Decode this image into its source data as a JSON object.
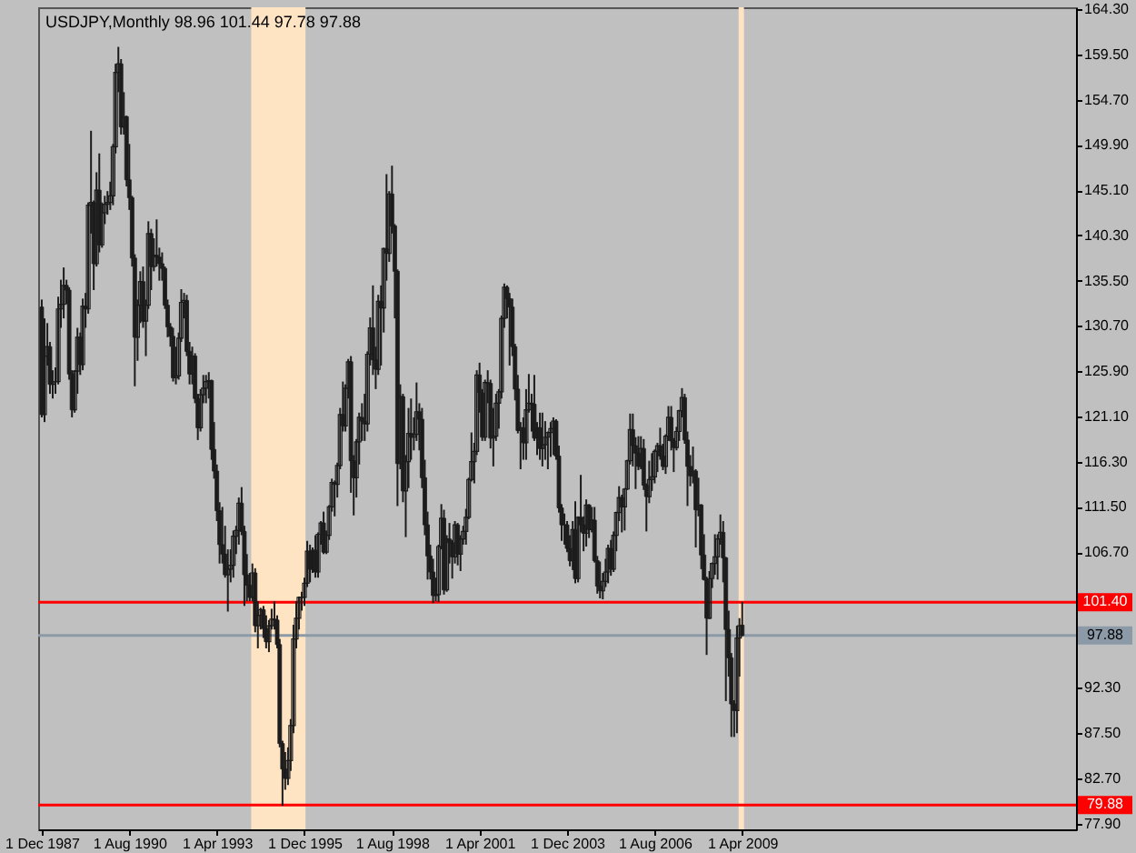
{
  "chart_data": {
    "type": "candlestick",
    "title": "USDJPY,Monthly 98.96 101.44 97.78 97.88",
    "color": "#1c1c1c",
    "grid": false,
    "x": [
      "1987-12",
      "1988-01",
      "1988-02",
      "1988-03",
      "1988-04",
      "1988-05",
      "1988-06",
      "1988-07",
      "1988-08",
      "1988-09",
      "1988-10",
      "1988-11",
      "1988-12",
      "1989-01",
      "1989-02",
      "1989-03",
      "1989-04",
      "1989-05",
      "1989-06",
      "1989-07",
      "1989-08",
      "1989-09",
      "1989-10",
      "1989-11",
      "1989-12",
      "1990-01",
      "1990-02",
      "1990-03",
      "1990-04",
      "1990-05",
      "1990-06",
      "1990-07",
      "1990-08",
      "1990-09",
      "1990-10",
      "1990-11",
      "1990-12",
      "1991-01",
      "1991-02",
      "1991-03",
      "1991-04",
      "1991-05",
      "1991-06",
      "1991-07",
      "1991-08",
      "1991-09",
      "1991-10",
      "1991-11",
      "1991-12",
      "1992-01",
      "1992-02",
      "1992-03",
      "1992-04",
      "1992-05",
      "1992-06",
      "1992-07",
      "1992-08",
      "1992-09",
      "1992-10",
      "1992-11",
      "1992-12",
      "1993-01",
      "1993-02",
      "1993-03",
      "1993-04",
      "1993-05",
      "1993-06",
      "1993-07",
      "1993-08",
      "1993-09",
      "1993-10",
      "1993-11",
      "1993-12",
      "1994-01",
      "1994-02",
      "1994-03",
      "1994-04",
      "1994-05",
      "1994-06",
      "1994-07",
      "1994-08",
      "1994-09",
      "1994-10",
      "1994-11",
      "1994-12",
      "1995-01",
      "1995-02",
      "1995-03",
      "1995-04",
      "1995-05",
      "1995-06",
      "1995-07",
      "1995-08",
      "1995-09",
      "1995-10",
      "1995-11",
      "1995-12",
      "1996-01",
      "1996-02",
      "1996-03",
      "1996-04",
      "1996-05",
      "1996-06",
      "1996-07",
      "1996-08",
      "1996-09",
      "1996-10",
      "1996-11",
      "1996-12",
      "1997-01",
      "1997-02",
      "1997-03",
      "1997-04",
      "1997-05",
      "1997-06",
      "1997-07",
      "1997-08",
      "1997-09",
      "1997-10",
      "1997-11",
      "1997-12",
      "1998-01",
      "1998-02",
      "1998-03",
      "1998-04",
      "1998-05",
      "1998-06",
      "1998-07",
      "1998-08",
      "1998-09",
      "1998-10",
      "1998-11",
      "1998-12",
      "1999-01",
      "1999-02",
      "1999-03",
      "1999-04",
      "1999-05",
      "1999-06",
      "1999-07",
      "1999-08",
      "1999-09",
      "1999-10",
      "1999-11",
      "1999-12",
      "2000-01",
      "2000-02",
      "2000-03",
      "2000-04",
      "2000-05",
      "2000-06",
      "2000-07",
      "2000-08",
      "2000-09",
      "2000-10",
      "2000-11",
      "2000-12",
      "2001-01",
      "2001-02",
      "2001-03",
      "2001-04",
      "2001-05",
      "2001-06",
      "2001-07",
      "2001-08",
      "2001-09",
      "2001-10",
      "2001-11",
      "2001-12",
      "2002-01",
      "2002-02",
      "2002-03",
      "2002-04",
      "2002-05",
      "2002-06",
      "2002-07",
      "2002-08",
      "2002-09",
      "2002-10",
      "2002-11",
      "2002-12",
      "2003-01",
      "2003-02",
      "2003-03",
      "2003-04",
      "2003-05",
      "2003-06",
      "2003-07",
      "2003-08",
      "2003-09",
      "2003-10",
      "2003-11",
      "2003-12",
      "2004-01",
      "2004-02",
      "2004-03",
      "2004-04",
      "2004-05",
      "2004-06",
      "2004-07",
      "2004-08",
      "2004-09",
      "2004-10",
      "2004-11",
      "2004-12",
      "2005-01",
      "2005-02",
      "2005-03",
      "2005-04",
      "2005-05",
      "2005-06",
      "2005-07",
      "2005-08",
      "2005-09",
      "2005-10",
      "2005-11",
      "2005-12",
      "2006-01",
      "2006-02",
      "2006-03",
      "2006-04",
      "2006-05",
      "2006-06",
      "2006-07",
      "2006-08",
      "2006-09",
      "2006-10",
      "2006-11",
      "2006-12",
      "2007-01",
      "2007-02",
      "2007-03",
      "2007-04",
      "2007-05",
      "2007-06",
      "2007-07",
      "2007-08",
      "2007-09",
      "2007-10",
      "2007-11",
      "2007-12",
      "2008-01",
      "2008-02",
      "2008-03",
      "2008-04",
      "2008-05",
      "2008-06",
      "2008-07",
      "2008-08",
      "2008-09",
      "2008-10",
      "2008-11",
      "2008-12",
      "2009-01",
      "2009-02",
      "2009-03",
      "2009-04"
    ],
    "ohlc": [
      [
        132.7,
        133.5,
        121.0,
        121.3
      ],
      [
        121.3,
        131.5,
        120.5,
        127.5
      ],
      [
        127.5,
        131.0,
        126.5,
        128.5
      ],
      [
        128.5,
        129.0,
        123.5,
        124.5
      ],
      [
        124.5,
        126.0,
        123.0,
        124.8
      ],
      [
        124.8,
        126.3,
        123.5,
        124.8
      ],
      [
        124.8,
        133.8,
        124.5,
        132.5
      ],
      [
        132.5,
        135.6,
        130.5,
        133.0
      ],
      [
        133.0,
        136.9,
        131.5,
        135.0
      ],
      [
        135.0,
        135.6,
        133.0,
        134.5
      ],
      [
        134.5,
        134.8,
        125.0,
        125.6
      ],
      [
        125.6,
        126.0,
        121.0,
        121.8
      ],
      [
        121.8,
        126.0,
        121.5,
        125.9
      ],
      [
        125.9,
        130.5,
        123.5,
        129.5
      ],
      [
        129.5,
        130.0,
        125.5,
        126.6
      ],
      [
        126.6,
        133.6,
        126.0,
        132.8
      ],
      [
        132.8,
        134.2,
        130.5,
        132.5
      ],
      [
        132.5,
        143.8,
        132.0,
        143.5
      ],
      [
        143.5,
        151.4,
        140.5,
        143.8
      ],
      [
        143.8,
        144.0,
        134.5,
        137.3
      ],
      [
        137.3,
        147.0,
        137.0,
        145.1
      ],
      [
        145.1,
        149.0,
        138.5,
        139.3
      ],
      [
        139.3,
        143.8,
        139.0,
        142.7
      ],
      [
        142.7,
        144.5,
        141.5,
        143.6
      ],
      [
        143.6,
        145.0,
        142.5,
        143.8
      ],
      [
        143.8,
        146.0,
        143.0,
        144.5
      ],
      [
        144.5,
        150.0,
        143.5,
        149.7
      ],
      [
        149.7,
        158.5,
        149.0,
        157.6
      ],
      [
        157.6,
        160.3,
        155.5,
        158.5
      ],
      [
        158.5,
        159.0,
        151.0,
        151.8
      ],
      [
        151.8,
        155.5,
        151.0,
        152.9
      ],
      [
        152.9,
        153.0,
        145.5,
        146.2
      ],
      [
        146.2,
        150.0,
        143.0,
        144.3
      ],
      [
        144.3,
        144.5,
        137.0,
        137.9
      ],
      [
        137.9,
        138.3,
        124.3,
        129.5
      ],
      [
        129.5,
        133.5,
        127.0,
        132.9
      ],
      [
        132.9,
        136.5,
        131.0,
        135.4
      ],
      [
        135.4,
        137.0,
        130.5,
        131.2
      ],
      [
        131.2,
        133.5,
        127.5,
        132.9
      ],
      [
        132.9,
        141.8,
        132.5,
        140.5
      ],
      [
        140.5,
        141.0,
        134.5,
        137.0
      ],
      [
        137.0,
        140.0,
        136.5,
        138.2
      ],
      [
        138.2,
        142.0,
        137.0,
        138.0
      ],
      [
        138.0,
        139.0,
        135.5,
        137.3
      ],
      [
        137.3,
        138.5,
        135.5,
        136.8
      ],
      [
        136.8,
        137.0,
        132.5,
        132.9
      ],
      [
        132.9,
        133.5,
        129.5,
        130.6
      ],
      [
        130.6,
        131.0,
        128.5,
        129.6
      ],
      [
        129.6,
        130.5,
        124.8,
        125.2
      ],
      [
        125.2,
        128.5,
        124.5,
        125.4
      ],
      [
        125.4,
        130.0,
        125.0,
        129.4
      ],
      [
        129.4,
        134.6,
        129.0,
        133.2
      ],
      [
        133.2,
        134.2,
        131.5,
        133.4
      ],
      [
        133.4,
        134.0,
        127.5,
        128.0
      ],
      [
        128.0,
        129.0,
        124.5,
        125.6
      ],
      [
        125.6,
        128.5,
        124.5,
        127.5
      ],
      [
        127.5,
        127.8,
        122.5,
        123.0
      ],
      [
        123.0,
        123.5,
        118.6,
        119.9
      ],
      [
        119.9,
        124.0,
        119.5,
        123.4
      ],
      [
        123.4,
        125.5,
        122.5,
        124.1
      ],
      [
        124.1,
        125.5,
        122.5,
        124.8
      ],
      [
        124.8,
        125.8,
        123.0,
        124.9
      ],
      [
        124.9,
        125.0,
        116.5,
        117.6
      ],
      [
        117.6,
        120.5,
        114.5,
        115.3
      ],
      [
        115.3,
        116.0,
        110.0,
        111.1
      ],
      [
        111.1,
        112.0,
        105.5,
        107.5
      ],
      [
        107.5,
        111.5,
        105.5,
        106.5
      ],
      [
        106.5,
        109.5,
        104.0,
        104.3
      ],
      [
        104.3,
        107.0,
        100.4,
        104.9
      ],
      [
        104.9,
        107.0,
        103.5,
        105.3
      ],
      [
        105.3,
        109.0,
        104.0,
        108.4
      ],
      [
        108.4,
        109.5,
        106.5,
        109.0
      ],
      [
        109.0,
        112.5,
        107.5,
        111.9
      ],
      [
        111.9,
        113.6,
        108.5,
        108.9
      ],
      [
        108.9,
        109.5,
        101.0,
        104.3
      ],
      [
        104.3,
        106.5,
        101.5,
        103.2
      ],
      [
        103.2,
        104.5,
        101.5,
        101.9
      ],
      [
        101.9,
        105.5,
        101.5,
        104.5
      ],
      [
        104.5,
        105.0,
        98.2,
        98.9
      ],
      [
        98.9,
        101.5,
        96.5,
        100.0
      ],
      [
        100.0,
        100.8,
        98.5,
        100.6
      ],
      [
        100.6,
        101.0,
        97.6,
        98.6
      ],
      [
        98.6,
        100.0,
        96.5,
        97.2
      ],
      [
        97.2,
        99.5,
        96.1,
        98.9
      ],
      [
        98.9,
        100.7,
        98.5,
        99.6
      ],
      [
        99.6,
        101.5,
        98.5,
        99.5
      ],
      [
        99.5,
        100.0,
        96.5,
        96.9
      ],
      [
        96.9,
        97.5,
        86.0,
        86.4
      ],
      [
        86.4,
        86.7,
        79.8,
        83.7
      ],
      [
        83.7,
        85.5,
        81.5,
        82.7
      ],
      [
        82.7,
        86.0,
        82.0,
        84.6
      ],
      [
        84.6,
        89.0,
        83.5,
        88.3
      ],
      [
        88.3,
        99.0,
        87.5,
        97.5
      ],
      [
        97.5,
        101.5,
        96.5,
        99.7
      ],
      [
        99.7,
        102.0,
        98.5,
        101.9
      ],
      [
        101.9,
        102.5,
        100.5,
        101.9
      ],
      [
        101.9,
        104.0,
        101.0,
        103.4
      ],
      [
        103.4,
        107.9,
        103.0,
        106.8
      ],
      [
        106.8,
        107.5,
        103.5,
        104.9
      ],
      [
        104.9,
        107.2,
        104.5,
        106.9
      ],
      [
        106.9,
        108.5,
        104.0,
        104.6
      ],
      [
        104.6,
        108.8,
        104.0,
        108.6
      ],
      [
        108.6,
        110.0,
        107.5,
        109.8
      ],
      [
        109.8,
        111.0,
        106.5,
        106.7
      ],
      [
        106.7,
        109.0,
        106.5,
        108.5
      ],
      [
        108.5,
        111.7,
        108.0,
        111.5
      ],
      [
        111.5,
        114.5,
        111.0,
        114.1
      ],
      [
        114.1,
        114.3,
        110.5,
        113.9
      ],
      [
        113.9,
        116.2,
        112.5,
        115.9
      ],
      [
        115.9,
        122.0,
        115.5,
        121.3
      ],
      [
        121.3,
        124.8,
        119.5,
        120.1
      ],
      [
        120.1,
        124.5,
        119.5,
        124.1
      ],
      [
        124.1,
        127.2,
        123.0,
        126.9
      ],
      [
        126.9,
        127.5,
        113.0,
        116.4
      ],
      [
        116.4,
        117.0,
        110.6,
        114.6
      ],
      [
        114.6,
        118.7,
        112.5,
        118.4
      ],
      [
        118.4,
        121.5,
        116.0,
        121.0
      ],
      [
        121.0,
        122.5,
        118.5,
        120.6
      ],
      [
        120.6,
        123.5,
        118.5,
        120.3
      ],
      [
        120.3,
        128.0,
        119.5,
        127.7
      ],
      [
        127.7,
        131.6,
        126.5,
        130.5
      ],
      [
        130.5,
        135.0,
        125.5,
        127.1
      ],
      [
        127.1,
        128.5,
        124.0,
        126.1
      ],
      [
        126.1,
        134.0,
        125.5,
        133.3
      ],
      [
        133.3,
        135.0,
        126.5,
        132.6
      ],
      [
        132.6,
        139.0,
        130.0,
        138.9
      ],
      [
        138.9,
        146.8,
        135.5,
        138.4
      ],
      [
        138.4,
        145.0,
        137.5,
        144.7
      ],
      [
        144.7,
        147.7,
        140.5,
        141.3
      ],
      [
        141.3,
        141.5,
        131.5,
        136.5
      ],
      [
        136.5,
        136.7,
        111.6,
        116.1
      ],
      [
        116.1,
        124.5,
        115.5,
        123.2
      ],
      [
        123.2,
        123.5,
        112.0,
        113.2
      ],
      [
        113.2,
        117.0,
        108.3,
        116.3
      ],
      [
        116.3,
        122.0,
        113.5,
        119.3
      ],
      [
        119.3,
        123.0,
        116.5,
        118.9
      ],
      [
        118.9,
        121.0,
        117.5,
        119.2
      ],
      [
        119.2,
        124.7,
        118.5,
        121.6
      ],
      [
        121.6,
        122.5,
        117.5,
        120.8
      ],
      [
        120.8,
        122.0,
        113.5,
        114.6
      ],
      [
        114.6,
        116.5,
        108.5,
        109.6
      ],
      [
        109.6,
        111.0,
        103.8,
        106.3
      ],
      [
        106.3,
        107.5,
        103.8,
        104.6
      ],
      [
        104.6,
        106.0,
        101.3,
        102.1
      ],
      [
        102.1,
        104.0,
        101.5,
        102.2
      ],
      [
        102.2,
        107.5,
        101.4,
        107.3
      ],
      [
        107.3,
        111.8,
        107.0,
        110.3
      ],
      [
        110.3,
        111.2,
        102.2,
        102.7
      ],
      [
        102.7,
        108.5,
        102.5,
        108.1
      ],
      [
        108.1,
        109.8,
        105.5,
        107.7
      ],
      [
        107.7,
        108.0,
        103.9,
        106.2
      ],
      [
        106.2,
        110.0,
        105.5,
        109.6
      ],
      [
        109.6,
        109.8,
        105.3,
        106.5
      ],
      [
        106.5,
        108.5,
        104.7,
        108.1
      ],
      [
        108.1,
        109.5,
        107.5,
        108.9
      ],
      [
        108.9,
        111.3,
        107.5,
        110.4
      ],
      [
        110.4,
        114.6,
        110.2,
        114.4
      ],
      [
        114.4,
        119.4,
        114.2,
        116.3
      ],
      [
        116.3,
        118.3,
        114.0,
        117.4
      ],
      [
        117.4,
        126.0,
        117.0,
        125.5
      ],
      [
        125.5,
        126.8,
        121.5,
        123.6
      ],
      [
        123.6,
        124.0,
        118.5,
        118.9
      ],
      [
        118.9,
        125.0,
        118.5,
        124.7
      ],
      [
        124.7,
        126.0,
        122.5,
        124.6
      ],
      [
        124.6,
        125.0,
        117.7,
        118.8
      ],
      [
        118.8,
        122.0,
        115.8,
        119.0
      ],
      [
        119.0,
        123.5,
        118.5,
        122.5
      ],
      [
        122.5,
        124.0,
        119.8,
        123.7
      ],
      [
        123.7,
        131.8,
        123.0,
        131.5
      ],
      [
        131.5,
        135.2,
        130.5,
        134.8
      ],
      [
        134.8,
        135.0,
        131.5,
        133.6
      ],
      [
        133.6,
        134.2,
        126.5,
        132.7
      ],
      [
        132.7,
        133.6,
        127.5,
        128.5
      ],
      [
        128.5,
        128.8,
        122.8,
        124.0
      ],
      [
        124.0,
        125.5,
        119.3,
        119.6
      ],
      [
        119.6,
        120.5,
        115.5,
        119.9
      ],
      [
        119.9,
        121.0,
        116.5,
        118.3
      ],
      [
        118.3,
        124.0,
        116.5,
        121.8
      ],
      [
        121.8,
        125.6,
        121.5,
        122.5
      ],
      [
        122.5,
        123.5,
        119.5,
        122.4
      ],
      [
        122.4,
        125.5,
        118.5,
        118.8
      ],
      [
        118.8,
        120.5,
        117.0,
        119.9
      ],
      [
        119.9,
        121.5,
        116.5,
        117.7
      ],
      [
        117.7,
        121.5,
        115.8,
        118.1
      ],
      [
        118.1,
        120.6,
        116.5,
        118.9
      ],
      [
        118.9,
        119.5,
        115.5,
        119.4
      ],
      [
        119.4,
        120.5,
        116.8,
        119.8
      ],
      [
        119.8,
        121.0,
        117.0,
        120.6
      ],
      [
        120.6,
        120.8,
        116.5,
        116.9
      ],
      [
        116.9,
        118.0,
        110.9,
        111.4
      ],
      [
        111.4,
        111.8,
        107.9,
        109.6
      ],
      [
        109.6,
        110.8,
        107.5,
        109.6
      ],
      [
        109.6,
        110.0,
        106.7,
        107.1
      ],
      [
        107.1,
        108.5,
        105.2,
        105.8
      ],
      [
        105.8,
        110.0,
        104.8,
        109.1
      ],
      [
        109.1,
        112.1,
        103.4,
        103.9
      ],
      [
        103.9,
        110.5,
        103.5,
        110.4
      ],
      [
        110.4,
        114.9,
        108.8,
        109.6
      ],
      [
        109.6,
        110.5,
        106.8,
        108.7
      ],
      [
        108.7,
        112.3,
        107.3,
        111.7
      ],
      [
        111.7,
        111.8,
        108.2,
        109.1
      ],
      [
        109.1,
        111.5,
        108.8,
        110.1
      ],
      [
        110.1,
        111.5,
        105.6,
        105.8
      ],
      [
        105.8,
        106.3,
        102.3,
        103.1
      ],
      [
        103.1,
        105.7,
        101.8,
        102.6
      ],
      [
        102.6,
        104.5,
        101.7,
        103.6
      ],
      [
        103.6,
        106.0,
        103.0,
        104.6
      ],
      [
        104.6,
        107.5,
        103.4,
        107.1
      ],
      [
        107.1,
        108.0,
        104.2,
        104.9
      ],
      [
        104.9,
        108.9,
        104.6,
        108.5
      ],
      [
        108.5,
        111.0,
        106.8,
        110.9
      ],
      [
        110.9,
        113.7,
        110.0,
        112.5
      ],
      [
        112.5,
        112.8,
        108.8,
        111.5
      ],
      [
        111.5,
        113.5,
        109.0,
        113.4
      ],
      [
        113.4,
        116.5,
        113.3,
        116.4
      ],
      [
        116.4,
        121.4,
        116.0,
        119.7
      ],
      [
        119.7,
        121.4,
        115.8,
        118.0
      ],
      [
        118.0,
        118.9,
        113.4,
        117.2
      ],
      [
        117.2,
        119.0,
        115.4,
        115.8
      ],
      [
        115.8,
        119.0,
        115.5,
        117.7
      ],
      [
        117.7,
        118.7,
        113.3,
        113.8
      ],
      [
        113.8,
        114.0,
        108.9,
        112.6
      ],
      [
        112.6,
        116.4,
        111.9,
        114.4
      ],
      [
        114.4,
        117.2,
        113.2,
        114.7
      ],
      [
        114.7,
        117.6,
        114.0,
        117.4
      ],
      [
        117.4,
        118.3,
        115.2,
        118.0
      ],
      [
        118.0,
        119.9,
        116.5,
        116.9
      ],
      [
        116.9,
        118.2,
        115.4,
        115.8
      ],
      [
        115.8,
        119.2,
        115.0,
        119.0
      ],
      [
        119.0,
        122.2,
        118.5,
        121.0
      ],
      [
        121.0,
        122.2,
        117.5,
        118.5
      ],
      [
        118.5,
        118.8,
        115.2,
        117.8
      ],
      [
        117.8,
        120.0,
        117.5,
        119.5
      ],
      [
        119.5,
        121.8,
        118.5,
        121.7
      ],
      [
        121.7,
        124.1,
        121.0,
        123.1
      ],
      [
        123.1,
        123.5,
        118.2,
        118.6
      ],
      [
        118.6,
        119.5,
        111.6,
        115.8
      ],
      [
        115.8,
        117.0,
        113.7,
        114.8
      ],
      [
        114.8,
        117.9,
        114.0,
        115.3
      ],
      [
        115.3,
        115.5,
        107.2,
        111.2
      ],
      [
        111.2,
        114.6,
        110.5,
        111.7
      ],
      [
        111.7,
        111.8,
        104.9,
        106.4
      ],
      [
        106.4,
        108.6,
        103.7,
        103.8
      ],
      [
        103.8,
        104.1,
        95.8,
        99.7
      ],
      [
        99.7,
        104.7,
        99.6,
        103.9
      ],
      [
        103.9,
        105.6,
        102.9,
        105.5
      ],
      [
        105.5,
        108.6,
        104.3,
        106.2
      ],
      [
        106.2,
        108.6,
        103.8,
        108.1
      ],
      [
        108.1,
        110.7,
        107.5,
        108.8
      ],
      [
        108.8,
        110.0,
        103.5,
        106.1
      ],
      [
        106.1,
        106.2,
        90.9,
        98.5
      ],
      [
        98.5,
        100.5,
        93.5,
        95.5
      ],
      [
        95.5,
        96.0,
        87.1,
        90.6
      ],
      [
        90.6,
        91.0,
        87.1,
        89.9
      ],
      [
        89.9,
        98.9,
        87.5,
        97.6
      ],
      [
        97.6,
        99.7,
        93.5,
        98.9
      ],
      [
        98.96,
        101.44,
        97.78,
        97.88
      ]
    ],
    "xlim": [
      "1987-10-22",
      "2019-06-01"
    ],
    "xticks": [
      {
        "value": "1987-12-01",
        "label": "1 Dec 1987"
      },
      {
        "value": "1990-08-01",
        "label": "1 Aug 1990"
      },
      {
        "value": "1993-04-01",
        "label": "1 Apr 1993"
      },
      {
        "value": "1995-12-01",
        "label": "1 Dec 1995"
      },
      {
        "value": "1998-08-01",
        "label": "1 Aug 1998"
      },
      {
        "value": "2001-04-01",
        "label": "1 Apr 2001"
      },
      {
        "value": "2003-12-01",
        "label": "1 Dec 2003"
      },
      {
        "value": "2006-08-01",
        "label": "1 Aug 2006"
      },
      {
        "value": "2009-04-01",
        "label": "1 Apr 2009"
      }
    ],
    "ylim": [
      77.3,
      164.5
    ],
    "yticks": [
      {
        "value": 164.3,
        "label": "164.30"
      },
      {
        "value": 159.5,
        "label": "159.50"
      },
      {
        "value": 154.7,
        "label": "154.70"
      },
      {
        "value": 149.9,
        "label": "149.90"
      },
      {
        "value": 145.1,
        "label": "145.10"
      },
      {
        "value": 140.3,
        "label": "140.30"
      },
      {
        "value": 135.5,
        "label": "135.50"
      },
      {
        "value": 130.7,
        "label": "130.70"
      },
      {
        "value": 125.9,
        "label": "125.90"
      },
      {
        "value": 121.1,
        "label": "121.10"
      },
      {
        "value": 116.3,
        "label": "116.30"
      },
      {
        "value": 111.5,
        "label": "111.50"
      },
      {
        "value": 106.7,
        "label": "106.70"
      },
      {
        "value": 101.9,
        "label": null
      },
      {
        "value": 97.1,
        "label": null
      },
      {
        "value": 92.3,
        "label": "92.30"
      },
      {
        "value": 87.5,
        "label": "87.50"
      },
      {
        "value": 82.7,
        "label": "82.70"
      },
      {
        "value": 77.9,
        "label": "77.90"
      }
    ],
    "ref_lines": [
      {
        "axis": "y",
        "value": 101.4,
        "label": "101.40",
        "color": "#ff0000"
      },
      {
        "axis": "y",
        "value": 97.88,
        "label": "97.88",
        "color": "#8c9aa8"
      },
      {
        "axis": "y",
        "value": 79.88,
        "label": "79.88",
        "color": "#ff0000"
      }
    ],
    "bands": [
      {
        "axis": "x",
        "from": "1994-04-18",
        "to": "1995-12-13",
        "color": "#ffe4c4"
      },
      {
        "axis": "x",
        "from": "2009-02-20",
        "to": "2009-04-20",
        "color": "#ffe4c4"
      }
    ]
  }
}
